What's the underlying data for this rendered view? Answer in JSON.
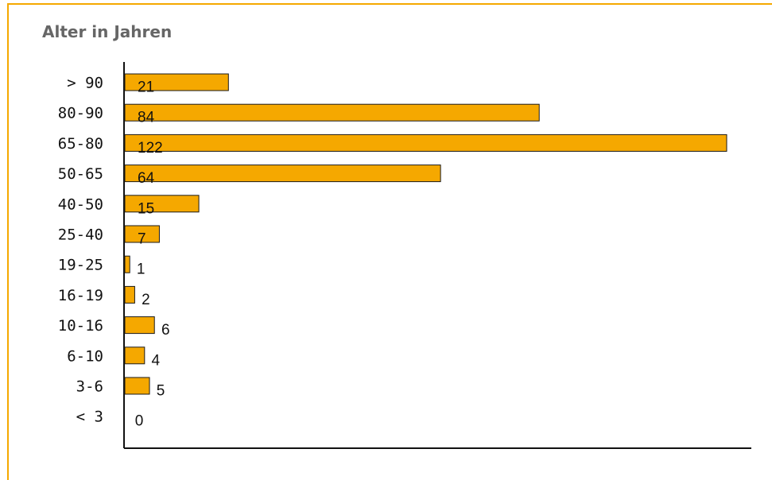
{
  "chart_data": {
    "type": "bar",
    "orientation": "horizontal",
    "title": "Alter in Jahren",
    "categories": [
      "> 90",
      "80-90",
      "65-80",
      "50-65",
      "40-50",
      "25-40",
      "19-25",
      "16-19",
      "10-16",
      "6-10",
      "3-6",
      "< 3"
    ],
    "values": [
      21,
      84,
      122,
      64,
      15,
      7,
      1,
      2,
      6,
      4,
      5,
      0
    ],
    "xlim": [
      0,
      122
    ],
    "grid": false,
    "legend": "none",
    "bar_color": "#F5A800",
    "bar_outline": "#1a1a1a",
    "frame_color": "#F5A800"
  }
}
